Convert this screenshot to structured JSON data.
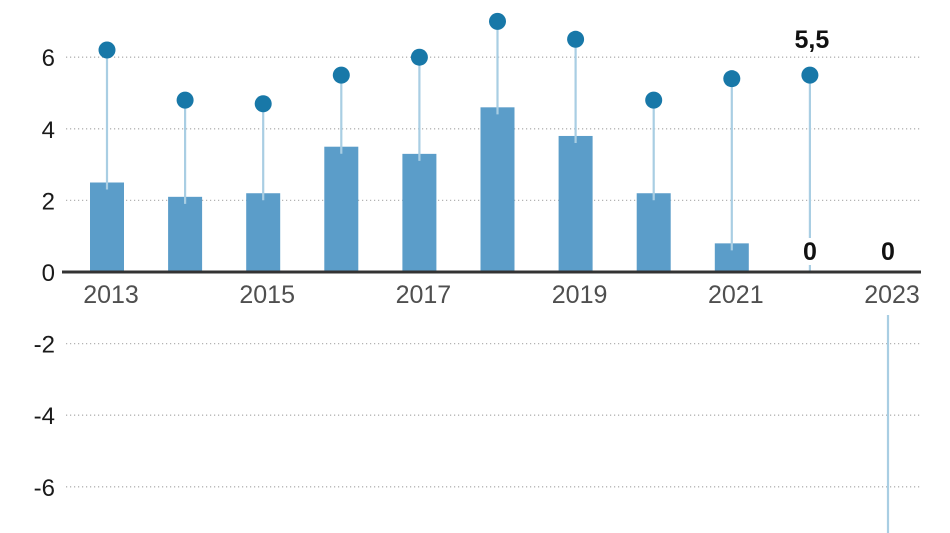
{
  "chart_data": {
    "type": "bar",
    "subtype": "bar-with-lollipop-markers",
    "title": "",
    "xlabel": "",
    "ylabel": "",
    "categories": [
      2013,
      2014,
      2015,
      2016,
      2017,
      2018,
      2019,
      2020,
      2021,
      2022,
      2023
    ],
    "series": [
      {
        "name": "bars",
        "type": "bar",
        "values": [
          2.5,
          2.1,
          2.2,
          3.5,
          3.3,
          4.6,
          3.8,
          2.2,
          0.8,
          0,
          0
        ]
      },
      {
        "name": "dots",
        "type": "lollipop",
        "values": [
          6.2,
          4.8,
          4.7,
          5.5,
          6.0,
          7.0,
          6.5,
          4.8,
          5.4,
          5.5,
          null
        ]
      }
    ],
    "y_ticks": [
      6,
      4,
      2,
      0,
      -2,
      -4,
      -6
    ],
    "x_tick_labels": [
      "2013",
      "2015",
      "2017",
      "2019",
      "2021",
      "2023"
    ],
    "x_tick_years": [
      2013,
      2015,
      2017,
      2019,
      2021,
      2023
    ],
    "ylim": [
      -7.3,
      7.6
    ],
    "grid": "dotted-horizontal",
    "legend": "none",
    "annotations": [
      {
        "role": "dot-value-label",
        "year": 2022,
        "text": "5,5"
      },
      {
        "role": "zero-value-label",
        "year": 2022,
        "text": "0"
      },
      {
        "role": "zero-value-label",
        "year": 2023,
        "text": "0"
      }
    ],
    "offscreen_stem": {
      "year": 2023,
      "from_value": -1.2,
      "to": "bottom-edge"
    },
    "colors": {
      "bar": "#5b9dc9",
      "dot": "#1878a8",
      "stem": "#a9cee3",
      "axis": "#333333",
      "grid": "#b3b3b3",
      "y_tick_text": "#1a1a1a",
      "x_tick_text": "#4f4f4f",
      "annotation_text": "#111111",
      "background": "#ffffff"
    }
  }
}
